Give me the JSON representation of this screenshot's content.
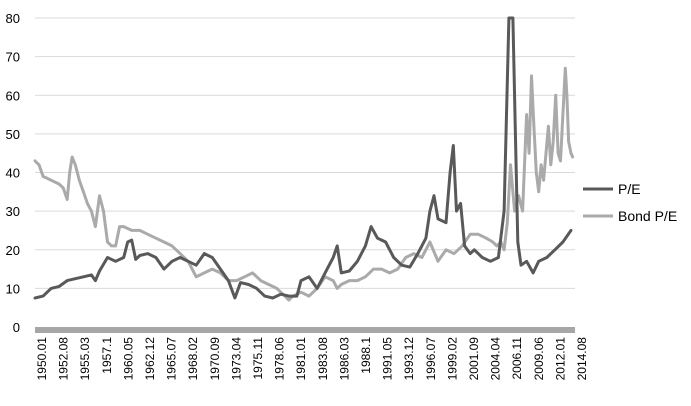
{
  "chart_data": {
    "type": "line",
    "title": "",
    "xlabel": "",
    "ylabel": "",
    "x_range": [
      1950.0,
      2017.0
    ],
    "ylim": [
      0,
      80
    ],
    "y_ticks": [
      0,
      10,
      20,
      30,
      40,
      50,
      60,
      70,
      80
    ],
    "x_tick_labels": [
      "1950.01",
      "1952.08",
      "1955.03",
      "1957.1",
      "1960.05",
      "1962.12",
      "1965.07",
      "1968.02",
      "1970.09",
      "1973.04",
      "1975.11",
      "1978.06",
      "1981.01",
      "1983.08",
      "1986.03",
      "1988.1",
      "1991.05",
      "1993.12",
      "1996.07",
      "1999.02",
      "2001.09",
      "2004.04",
      "2006.11",
      "2009.06",
      "2012.01",
      "2014.08"
    ],
    "grid": "horizontal",
    "legend_position": "right",
    "series": [
      {
        "name": "P/E",
        "color": "#595959",
        "x": [
          1950.0,
          1951.0,
          1952.0,
          1953.0,
          1954.0,
          1955.0,
          1956.0,
          1957.0,
          1957.5,
          1958.0,
          1959.0,
          1960.0,
          1961.0,
          1961.5,
          1962.0,
          1962.5,
          1963.0,
          1964.0,
          1965.0,
          1966.0,
          1967.0,
          1968.0,
          1969.0,
          1970.0,
          1971.0,
          1972.0,
          1973.0,
          1974.0,
          1974.8,
          1975.5,
          1976.5,
          1977.5,
          1978.5,
          1979.5,
          1980.5,
          1981.5,
          1982.5,
          1983.0,
          1984.0,
          1985.0,
          1986.0,
          1987.0,
          1987.5,
          1988.0,
          1989.0,
          1990.0,
          1991.0,
          1991.7,
          1992.5,
          1993.5,
          1994.5,
          1995.5,
          1996.5,
          1997.5,
          1998.5,
          1999.0,
          1999.5,
          2000.0,
          2001.0,
          2001.5,
          2001.9,
          2002.3,
          2002.8,
          2003.3,
          2004.0,
          2004.5,
          2005.5,
          2006.5,
          2007.5,
          2008.2,
          2008.8,
          2009.05,
          2009.3,
          2009.6,
          2009.9,
          2010.3,
          2011.0,
          2011.8,
          2012.5,
          2013.5,
          2014.5,
          2015.5,
          2016.5
        ],
        "values": [
          7.5,
          8,
          10,
          10.5,
          12,
          12.5,
          13,
          13.5,
          12,
          14.5,
          18,
          17,
          18,
          22,
          22.5,
          17.5,
          18.5,
          19,
          18,
          15,
          17,
          18,
          17,
          16,
          19,
          18,
          15,
          12,
          7.5,
          11.5,
          11,
          10,
          8,
          7.5,
          8.5,
          8,
          8,
          12,
          13,
          10,
          14,
          18,
          21,
          14,
          14.5,
          17,
          21,
          26,
          23,
          22,
          18,
          16,
          15.5,
          19,
          23,
          30,
          34,
          28,
          27,
          40,
          47,
          30,
          32,
          21,
          19,
          20,
          18,
          17,
          18,
          30,
          80,
          80,
          80,
          50,
          22,
          16,
          17,
          14,
          17,
          18,
          20,
          22,
          25
        ]
      },
      {
        "name": "Bond P/E",
        "color": "#aaaaaa",
        "x": [
          1950.0,
          1950.5,
          1951.0,
          1952.0,
          1953.0,
          1953.5,
          1954.0,
          1954.3,
          1954.6,
          1955.0,
          1955.5,
          1956.0,
          1956.5,
          1957.0,
          1957.5,
          1958.0,
          1958.5,
          1959.0,
          1959.5,
          1960.0,
          1960.5,
          1961.0,
          1962.0,
          1963.0,
          1964.0,
          1965.0,
          1966.0,
          1967.0,
          1968.0,
          1969.0,
          1970.0,
          1971.0,
          1972.0,
          1973.0,
          1974.0,
          1975.0,
          1976.0,
          1977.0,
          1978.0,
          1979.0,
          1980.0,
          1981.0,
          1981.5,
          1982.0,
          1983.0,
          1984.0,
          1985.0,
          1986.0,
          1987.0,
          1987.5,
          1988.0,
          1989.0,
          1990.0,
          1991.0,
          1992.0,
          1993.0,
          1994.0,
          1995.0,
          1996.0,
          1997.0,
          1998.0,
          1999.0,
          2000.0,
          2001.0,
          2002.0,
          2003.0,
          2004.0,
          2005.0,
          2006.0,
          2006.8,
          2007.3,
          2007.8,
          2008.2,
          2008.6,
          2009.0,
          2009.5,
          2010.0,
          2010.5,
          2011.0,
          2011.3,
          2011.6,
          2011.9,
          2012.2,
          2012.5,
          2012.8,
          2013.1,
          2013.4,
          2013.7,
          2014.0,
          2014.3,
          2014.6,
          2014.9,
          2015.2,
          2015.5,
          2015.8,
          2016.0,
          2016.2,
          2016.5,
          2016.7
        ],
        "values": [
          43,
          42,
          39,
          38,
          37,
          36,
          33,
          40,
          44,
          42,
          38,
          35,
          32,
          30,
          26,
          34,
          30,
          22,
          21,
          21,
          26,
          26,
          25,
          25,
          24,
          23,
          22,
          21,
          19,
          17,
          13,
          14,
          15,
          14,
          12,
          12,
          13,
          14,
          12,
          11,
          10,
          8,
          7,
          8,
          9,
          8,
          10,
          13,
          12,
          10,
          11,
          12,
          12,
          13,
          15,
          15,
          14,
          15,
          18,
          19,
          18,
          22,
          17,
          20,
          19,
          21,
          24,
          24,
          23,
          22,
          21,
          22,
          20,
          27,
          42,
          30,
          34,
          30,
          55,
          45,
          65,
          52,
          40,
          35,
          42,
          38,
          45,
          52,
          42,
          48,
          60,
          45,
          43,
          55,
          67,
          60,
          48,
          45,
          44
        ]
      }
    ]
  }
}
